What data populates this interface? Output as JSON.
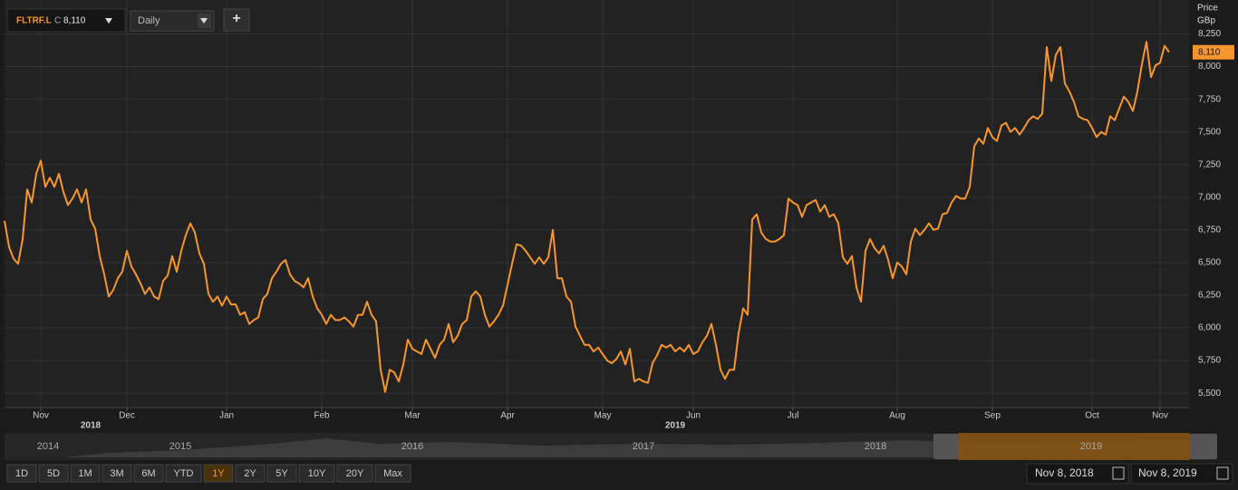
{
  "chart_data": {
    "type": "line",
    "series": [
      {
        "name": "FLTRF.L",
        "color": "#f7962f",
        "values": [
          6820,
          6620,
          6530,
          6490,
          6680,
          7060,
          6960,
          7180,
          7280,
          7080,
          7150,
          7080,
          7180,
          7040,
          6940,
          6990,
          7060,
          6960,
          7060,
          6830,
          6760,
          6550,
          6410,
          6240,
          6290,
          6380,
          6430,
          6590,
          6470,
          6410,
          6340,
          6260,
          6310,
          6240,
          6220,
          6360,
          6400,
          6550,
          6430,
          6590,
          6710,
          6800,
          6730,
          6570,
          6490,
          6260,
          6200,
          6240,
          6170,
          6240,
          6180,
          6180,
          6100,
          6120,
          6030,
          6060,
          6080,
          6220,
          6260,
          6380,
          6430,
          6490,
          6520,
          6410,
          6360,
          6340,
          6310,
          6380,
          6240,
          6150,
          6100,
          6030,
          6100,
          6060,
          6060,
          6080,
          6050,
          6010,
          6100,
          6100,
          6200,
          6100,
          6050,
          5680,
          5510,
          5680,
          5660,
          5590,
          5720,
          5910,
          5840,
          5820,
          5800,
          5910,
          5840,
          5770,
          5870,
          5910,
          6030,
          5890,
          5940,
          6030,
          6060,
          6240,
          6280,
          6240,
          6100,
          6010,
          6050,
          6100,
          6170,
          6330,
          6490,
          6640,
          6630,
          6590,
          6540,
          6490,
          6540,
          6490,
          6540,
          6750,
          6380,
          6380,
          6240,
          6200,
          6010,
          5940,
          5870,
          5870,
          5820,
          5850,
          5800,
          5750,
          5730,
          5760,
          5820,
          5720,
          5840,
          5590,
          5610,
          5590,
          5580,
          5730,
          5790,
          5870,
          5850,
          5870,
          5820,
          5850,
          5820,
          5870,
          5800,
          5820,
          5890,
          5940,
          6030,
          5870,
          5680,
          5610,
          5680,
          5680,
          5960,
          6150,
          6100,
          6830,
          6870,
          6730,
          6680,
          6660,
          6660,
          6680,
          6710,
          6990,
          6960,
          6940,
          6850,
          6940,
          6960,
          6980,
          6890,
          6940,
          6850,
          6870,
          6800,
          6540,
          6490,
          6550,
          6310,
          6200,
          6590,
          6680,
          6610,
          6570,
          6630,
          6520,
          6380,
          6500,
          6470,
          6410,
          6660,
          6760,
          6710,
          6750,
          6800,
          6750,
          6760,
          6870,
          6880,
          6960,
          7010,
          6990,
          6990,
          7080,
          7390,
          7450,
          7410,
          7530,
          7460,
          7430,
          7550,
          7570,
          7500,
          7530,
          7480,
          7530,
          7590,
          7620,
          7600,
          7640,
          8150,
          7890,
          8090,
          8150,
          7870,
          7810,
          7730,
          7620,
          7600,
          7590,
          7530,
          7460,
          7500,
          7480,
          7620,
          7590,
          7680,
          7770,
          7730,
          7660,
          7810,
          8020,
          8190,
          7920,
          8010,
          8030,
          8160,
          8110
        ]
      }
    ],
    "xlim": [
      0,
      261
    ],
    "xticks": [
      {
        "value": 8,
        "label": "Nov"
      },
      {
        "value": 27,
        "label": "Dec"
      },
      {
        "value": 49,
        "label": "Jan"
      },
      {
        "value": 70,
        "label": "Feb"
      },
      {
        "value": 90,
        "label": "Mar"
      },
      {
        "value": 111,
        "label": "Apr"
      },
      {
        "value": 132,
        "label": "May"
      },
      {
        "value": 152,
        "label": "Jun"
      },
      {
        "value": 174,
        "label": "Jul"
      },
      {
        "value": 197,
        "label": "Aug"
      },
      {
        "value": 218,
        "label": "Sep"
      },
      {
        "value": 240,
        "label": "Oct"
      },
      {
        "value": 255,
        "label": "Nov"
      }
    ],
    "year_ticks": [
      {
        "value": 19,
        "label": "2018"
      },
      {
        "value": 148,
        "label": "2019"
      }
    ],
    "ylim": [
      5390,
      8510
    ],
    "yticks": [
      {
        "value": 5500,
        "label": "5,500"
      },
      {
        "value": 5750,
        "label": "5,750"
      },
      {
        "value": 6000,
        "label": "6,000"
      },
      {
        "value": 6250,
        "label": "6,250"
      },
      {
        "value": 6500,
        "label": "6,500"
      },
      {
        "value": 6750,
        "label": "6,750"
      },
      {
        "value": 7000,
        "label": "7,000"
      },
      {
        "value": 7250,
        "label": "7,250"
      },
      {
        "value": 7500,
        "label": "7,500"
      },
      {
        "value": 7750,
        "label": "7,750"
      },
      {
        "value": 8000,
        "label": "8,000"
      },
      {
        "value": 8250,
        "label": "8,250"
      }
    ],
    "y_axis_title": "Price",
    "y_axis_unit": "GBp",
    "price_tag": {
      "value": 8110,
      "label": "8,110"
    },
    "grid": true
  },
  "toolbar": {
    "close_prefix": "C",
    "interval": "Daily",
    "add": "+"
  },
  "navigator": {
    "years": [
      "2014",
      "2015",
      "2016",
      "2017",
      "2018",
      "2019"
    ]
  },
  "range_buttons": [
    "1D",
    "5D",
    "1M",
    "3M",
    "6M",
    "YTD",
    "1Y",
    "2Y",
    "5Y",
    "10Y",
    "20Y",
    "Max"
  ],
  "selected_range": "1Y",
  "date_range": {
    "from": "Nov 8, 2018",
    "to": "Nov 8, 2019"
  }
}
